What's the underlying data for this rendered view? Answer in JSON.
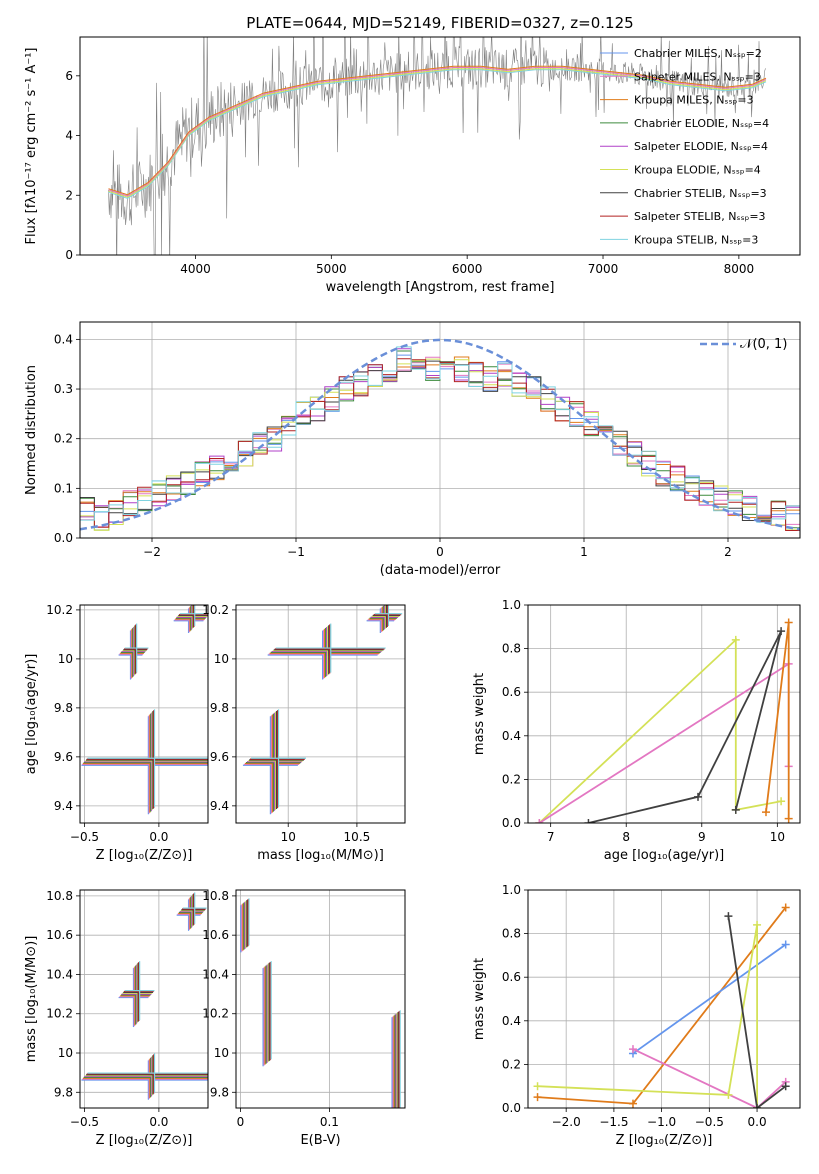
{
  "figure": {
    "title": "PLATE=0644, MJD=52149, FIBERID=0327, z=0.125"
  },
  "colors": {
    "chabrier_miles": "#6495ed",
    "salpeter_miles": "#e377c2",
    "kroupa_miles": "#e07b1a",
    "chabrier_elodie": "#3d8b3d",
    "salpeter_elodie": "#b040c8",
    "kroupa_elodie": "#d4e157",
    "chabrier_stelib": "#404040",
    "salpeter_stelib": "#b22222",
    "kroupa_stelib": "#7fd3e0",
    "gaussian": "#6a8fd8"
  },
  "chart_data": [
    {
      "id": "spectrum",
      "type": "line",
      "title": "PLATE=0644, MJD=52149, FIBERID=0327, z=0.125",
      "xlabel": "wavelength [Angstrom, rest frame]",
      "ylabel": "Flux [fλ10⁻¹⁷ erg cm⁻² s⁻¹ A⁻¹]",
      "xlim": [
        3150,
        8450
      ],
      "ylim": [
        0,
        7.3
      ],
      "xticks": [
        4000,
        5000,
        6000,
        7000,
        8000
      ],
      "yticks": [
        0,
        2,
        4,
        6
      ],
      "legend_position": "top-right",
      "legend": [
        "Chabrier MILES, N_SSP=2",
        "Salpeter MILES, N_SSP=3",
        "Kroupa MILES, N_SSP=3",
        "Chabrier ELODIE, N_SSP=4",
        "Salpeter ELODIE, N_SSP=4",
        "Kroupa ELODIE, N_SSP=4",
        "Chabrier STELIB, N_SSP=3",
        "Salpeter STELIB, N_SSP=3",
        "Kroupa STELIB, N_SSP=3"
      ],
      "data_series": {
        "name": "observed",
        "x": [
          3360,
          3500,
          3650,
          3800,
          3950,
          4100,
          4300,
          4500,
          4700,
          4900,
          5100,
          5300,
          5500,
          5700,
          5900,
          6100,
          6300,
          6500,
          6700,
          6900,
          7100,
          7300,
          7500,
          7700,
          7900,
          8100,
          8200
        ],
        "y": [
          2.2,
          1.9,
          2.4,
          3.2,
          4.2,
          4.6,
          5.0,
          5.4,
          5.6,
          5.8,
          5.9,
          6.0,
          6.1,
          6.2,
          6.3,
          6.3,
          6.2,
          6.3,
          6.2,
          6.2,
          6.1,
          6.0,
          5.8,
          5.7,
          5.6,
          5.7,
          5.9
        ]
      },
      "model_series": {
        "x": [
          3360,
          3500,
          3650,
          3800,
          3950,
          4100,
          4300,
          4500,
          4700,
          4900,
          5100,
          5300,
          5500,
          5700,
          5900,
          6100,
          6300,
          6500,
          6700,
          6900,
          7100,
          7300,
          7500,
          7700,
          7900,
          8100,
          8200
        ],
        "y": [
          2.1,
          1.9,
          2.3,
          3.0,
          4.0,
          4.5,
          4.9,
          5.3,
          5.5,
          5.7,
          5.8,
          5.9,
          6.0,
          6.1,
          6.2,
          6.2,
          6.1,
          6.2,
          6.2,
          6.1,
          6.0,
          5.9,
          5.7,
          5.6,
          5.5,
          5.6,
          5.8
        ]
      }
    },
    {
      "id": "residuals",
      "type": "line",
      "xlabel": "(data-model)/error",
      "ylabel": "Normed distribution",
      "xlim": [
        -2.5,
        2.5
      ],
      "ylim": [
        0,
        0.435
      ],
      "xticks": [
        -2,
        -1,
        0,
        1,
        2
      ],
      "yticks": [
        0.0,
        0.1,
        0.2,
        0.3,
        0.4
      ],
      "legend_position": "top-right",
      "legend": [
        "𝒩(0, 1)"
      ],
      "hist_bin_centers": [
        -2.45,
        -2.35,
        -2.25,
        -2.15,
        -2.05,
        -1.95,
        -1.85,
        -1.75,
        -1.65,
        -1.55,
        -1.45,
        -1.35,
        -1.25,
        -1.15,
        -1.05,
        -0.95,
        -0.85,
        -0.75,
        -0.65,
        -0.55,
        -0.45,
        -0.35,
        -0.25,
        -0.15,
        -0.05,
        0.05,
        0.15,
        0.25,
        0.35,
        0.45,
        0.55,
        0.65,
        0.75,
        0.85,
        0.95,
        1.05,
        1.15,
        1.25,
        1.35,
        1.45,
        1.55,
        1.65,
        1.75,
        1.85,
        1.95,
        2.05,
        2.15,
        2.25,
        2.35,
        2.45
      ],
      "hist_values": [
        0.06,
        0.04,
        0.05,
        0.07,
        0.08,
        0.09,
        0.1,
        0.11,
        0.13,
        0.14,
        0.16,
        0.17,
        0.19,
        0.2,
        0.22,
        0.25,
        0.26,
        0.28,
        0.3,
        0.31,
        0.33,
        0.34,
        0.36,
        0.35,
        0.34,
        0.33,
        0.34,
        0.33,
        0.32,
        0.33,
        0.31,
        0.3,
        0.28,
        0.26,
        0.25,
        0.23,
        0.21,
        0.19,
        0.17,
        0.15,
        0.13,
        0.12,
        0.1,
        0.09,
        0.08,
        0.07,
        0.06,
        0.05,
        0.05,
        0.04
      ]
    },
    {
      "id": "z-age",
      "type": "scatter",
      "xlabel": "Z [log₁₀(Z/Z⊙)]",
      "ylabel": "age  [log₁₀(age/yr)]",
      "xlim": [
        -0.53,
        0.33
      ],
      "ylim": [
        9.33,
        10.22
      ],
      "xticks": [
        -0.5,
        0.0
      ],
      "xticklabels": [
        "−0.5",
        "0.0"
      ],
      "yticks": [
        9.4,
        9.6,
        9.8,
        10.0,
        10.2
      ],
      "points": [
        {
          "x": -0.17,
          "y": 10.03,
          "xerr": 0.08,
          "yerr": 0.1
        },
        {
          "x": -0.05,
          "y": 9.58,
          "xerr": 0.45,
          "yerr": 0.2
        },
        {
          "x": 0.22,
          "y": 10.17,
          "xerr": 0.1,
          "yerr": 0.05
        }
      ]
    },
    {
      "id": "mass-age",
      "type": "scatter",
      "xlabel": "mass [log₁₀(M/M⊙)]",
      "ylabel": "",
      "xlim": [
        9.62,
        10.85
      ],
      "ylim": [
        9.33,
        10.22
      ],
      "xticks": [
        10.0,
        10.5
      ],
      "yticks": [
        9.4,
        9.6,
        9.8,
        10.0,
        10.2
      ],
      "points": [
        {
          "x": 10.28,
          "y": 10.03,
          "xerr": 0.4,
          "yerr": 0.1
        },
        {
          "x": 9.9,
          "y": 9.58,
          "xerr": 0.2,
          "yerr": 0.2
        },
        {
          "x": 10.7,
          "y": 10.17,
          "xerr": 0.1,
          "yerr": 0.05
        }
      ]
    },
    {
      "id": "age-weight",
      "type": "line",
      "xlabel": "age  [log₁₀(age/yr)]",
      "ylabel": "mass weight",
      "xlim": [
        6.7,
        10.3
      ],
      "ylim": [
        0.0,
        1.0
      ],
      "xticks": [
        7,
        8,
        9,
        10
      ],
      "yticks": [
        0.0,
        0.2,
        0.4,
        0.6,
        0.8,
        1.0
      ],
      "series": [
        {
          "color_key": "kroupa_elodie",
          "x": [
            6.85,
            9.45,
            9.45,
            10.05
          ],
          "y": [
            0.0,
            0.84,
            0.06,
            0.1
          ]
        },
        {
          "color_key": "salpeter_miles",
          "x": [
            6.85,
            10.15,
            10.15
          ],
          "y": [
            0.0,
            0.73,
            0.26
          ]
        },
        {
          "color_key": "chabrier_stelib",
          "x": [
            7.5,
            8.95,
            10.05,
            9.45
          ],
          "y": [
            0.0,
            0.12,
            0.88,
            0.06
          ]
        },
        {
          "color_key": "kroupa_miles",
          "x": [
            9.85,
            10.15,
            10.15
          ],
          "y": [
            0.05,
            0.92,
            0.02
          ]
        }
      ]
    },
    {
      "id": "z-mass",
      "type": "scatter",
      "xlabel": "Z [log₁₀(Z/Z⊙)]",
      "ylabel": "mass [log₁₀(M/M⊙)]",
      "xlim": [
        -0.53,
        0.33
      ],
      "ylim": [
        9.72,
        10.83
      ],
      "xticks": [
        -0.5,
        0.0
      ],
      "xticklabels": [
        "−0.5",
        "0.0"
      ],
      "yticks": [
        9.8,
        10.0,
        10.2,
        10.4,
        10.6,
        10.8
      ],
      "points": [
        {
          "x": -0.15,
          "y": 10.3,
          "xerr": 0.1,
          "yerr": 0.15
        },
        {
          "x": -0.05,
          "y": 9.88,
          "xerr": 0.45,
          "yerr": 0.1
        },
        {
          "x": 0.22,
          "y": 10.72,
          "xerr": 0.08,
          "yerr": 0.08
        }
      ]
    },
    {
      "id": "ebv-mass",
      "type": "scatter",
      "xlabel": "E(B-V)",
      "ylabel": "",
      "xlim": [
        -0.005,
        0.185
      ],
      "ylim": [
        9.72,
        10.83
      ],
      "xticks": [
        0.0,
        0.1
      ],
      "yticks": [
        9.8,
        10.0,
        10.2,
        10.4,
        10.6,
        10.8
      ],
      "points": [
        {
          "x": 0.005,
          "y": 10.65,
          "yerr": 0.12
        },
        {
          "x": 0.03,
          "y": 10.2,
          "yerr": 0.25
        },
        {
          "x": 0.175,
          "y": 9.95,
          "yerr": 0.25
        }
      ]
    },
    {
      "id": "z-weight",
      "type": "line",
      "xlabel": "Z [log₁₀(Z/Z⊙)]",
      "ylabel": "mass weight",
      "xlim": [
        -2.4,
        0.45
      ],
      "ylim": [
        0.0,
        1.0
      ],
      "xticks": [
        -2.0,
        -1.5,
        -1.0,
        -0.5,
        0.0
      ],
      "xticklabels": [
        "−2.0",
        "−1.5",
        "−1.0",
        "−0.5",
        "0.0"
      ],
      "yticks": [
        0.0,
        0.2,
        0.4,
        0.6,
        0.8,
        1.0
      ],
      "series": [
        {
          "color_key": "kroupa_miles",
          "x": [
            -2.3,
            -1.3,
            0.3
          ],
          "y": [
            0.05,
            0.02,
            0.92
          ]
        },
        {
          "color_key": "chabrier_miles",
          "x": [
            -1.3,
            0.3
          ],
          "y": [
            0.25,
            0.75
          ]
        },
        {
          "color_key": "salpeter_miles",
          "x": [
            -1.3,
            0.0,
            0.3
          ],
          "y": [
            0.27,
            0.0,
            0.12
          ]
        },
        {
          "color_key": "kroupa_elodie",
          "x": [
            -2.3,
            -0.3,
            0.0,
            0.0
          ],
          "y": [
            0.1,
            0.06,
            0.84,
            0.0
          ]
        },
        {
          "color_key": "chabrier_stelib",
          "x": [
            -0.3,
            0.0,
            0.3
          ],
          "y": [
            0.88,
            0.0,
            0.1
          ]
        }
      ]
    }
  ]
}
